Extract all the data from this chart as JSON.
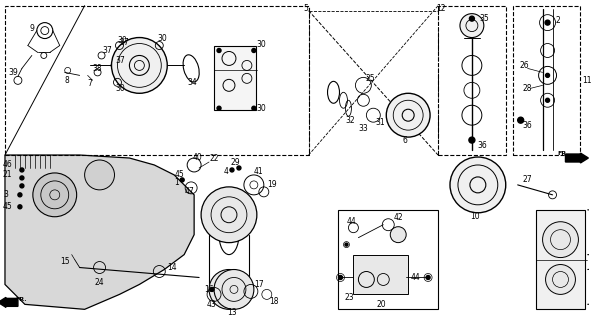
{
  "bg_color": "#ffffff",
  "fig_width": 5.92,
  "fig_height": 3.2,
  "dpi": 100,
  "font_size": 5.5,
  "lc": "#000000"
}
